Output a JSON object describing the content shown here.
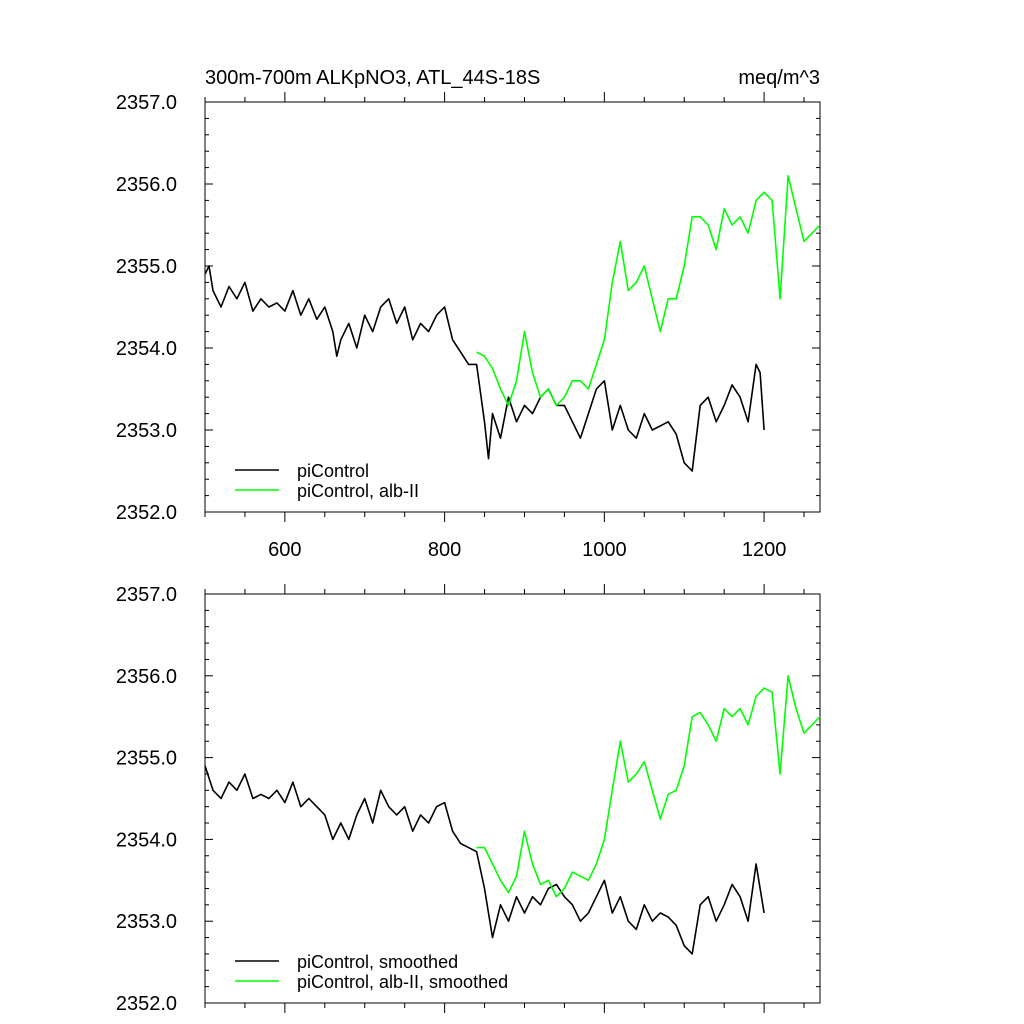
{
  "chart_data": [
    {
      "type": "line",
      "title": "300m-700m ALKpNO3, ATL_44S-18S",
      "units": "meq/m^3",
      "xlabel": "",
      "ylabel": "",
      "xlim": [
        500,
        1270
      ],
      "ylim": [
        2352.0,
        2357.0
      ],
      "x_ticks": [
        600,
        800,
        1000,
        1200
      ],
      "x_tick_labels": [
        "600",
        "800",
        "1000",
        "1200"
      ],
      "y_ticks": [
        2352.0,
        2353.0,
        2354.0,
        2355.0,
        2356.0,
        2357.0
      ],
      "y_tick_labels": [
        "2352.0",
        "2353.0",
        "2354.0",
        "2355.0",
        "2356.0",
        "2357.0"
      ],
      "grid": false,
      "legend_position": "bottom-left",
      "series": [
        {
          "name": "piControl",
          "color": "#000000",
          "x": [
            500,
            505,
            510,
            520,
            530,
            540,
            550,
            560,
            570,
            580,
            590,
            600,
            610,
            620,
            630,
            640,
            650,
            660,
            665,
            670,
            680,
            690,
            700,
            710,
            720,
            730,
            740,
            750,
            760,
            770,
            780,
            790,
            800,
            810,
            820,
            830,
            840,
            850,
            855,
            860,
            870,
            880,
            890,
            900,
            910,
            920,
            930,
            940,
            950,
            960,
            970,
            980,
            990,
            1000,
            1010,
            1020,
            1030,
            1040,
            1050,
            1060,
            1070,
            1080,
            1090,
            1100,
            1110,
            1120,
            1130,
            1140,
            1150,
            1160,
            1170,
            1180,
            1190,
            1195,
            1200
          ],
          "values": [
            2354.9,
            2355.0,
            2354.7,
            2354.5,
            2354.75,
            2354.6,
            2354.8,
            2354.45,
            2354.6,
            2354.5,
            2354.55,
            2354.45,
            2354.7,
            2354.4,
            2354.6,
            2354.35,
            2354.5,
            2354.2,
            2353.9,
            2354.1,
            2354.3,
            2354.0,
            2354.4,
            2354.2,
            2354.5,
            2354.6,
            2354.3,
            2354.5,
            2354.1,
            2354.3,
            2354.2,
            2354.4,
            2354.5,
            2354.1,
            2353.95,
            2353.8,
            2353.8,
            2353.1,
            2352.65,
            2353.2,
            2352.9,
            2353.4,
            2353.1,
            2353.3,
            2353.2,
            2353.4,
            2353.5,
            2353.3,
            2353.3,
            2353.1,
            2352.9,
            2353.2,
            2353.5,
            2353.6,
            2353.0,
            2353.3,
            2353.0,
            2352.9,
            2353.2,
            2353.0,
            2353.05,
            2353.1,
            2352.95,
            2352.6,
            2352.5,
            2353.3,
            2353.4,
            2353.1,
            2353.3,
            2353.55,
            2353.4,
            2353.1,
            2353.8,
            2353.7,
            2353.0
          ]
        },
        {
          "name": "piControl, alb-II",
          "color": "#00ff00",
          "x": [
            840,
            850,
            860,
            870,
            880,
            890,
            900,
            910,
            920,
            930,
            940,
            950,
            960,
            970,
            980,
            990,
            1000,
            1010,
            1020,
            1030,
            1040,
            1050,
            1060,
            1070,
            1080,
            1090,
            1100,
            1110,
            1120,
            1130,
            1140,
            1150,
            1160,
            1170,
            1180,
            1190,
            1200,
            1210,
            1220,
            1230,
            1240,
            1250,
            1260,
            1270
          ],
          "values": [
            2353.95,
            2353.9,
            2353.75,
            2353.5,
            2353.3,
            2353.6,
            2354.2,
            2353.7,
            2353.4,
            2353.5,
            2353.3,
            2353.4,
            2353.6,
            2353.6,
            2353.5,
            2353.8,
            2354.1,
            2354.8,
            2355.3,
            2354.7,
            2354.8,
            2355.0,
            2354.6,
            2354.2,
            2354.6,
            2354.6,
            2355.0,
            2355.6,
            2355.6,
            2355.5,
            2355.2,
            2355.7,
            2355.5,
            2355.6,
            2355.4,
            2355.8,
            2355.9,
            2355.8,
            2354.6,
            2356.1,
            2355.7,
            2355.3,
            2355.4,
            2355.5
          ]
        }
      ]
    },
    {
      "type": "line",
      "title": "",
      "xlabel": "",
      "ylabel": "",
      "xlim": [
        500,
        1270
      ],
      "ylim": [
        2352.0,
        2357.0
      ],
      "x_ticks": [
        600,
        800,
        1000,
        1200
      ],
      "x_tick_labels": [],
      "y_ticks": [
        2352.0,
        2353.0,
        2354.0,
        2355.0,
        2356.0,
        2357.0
      ],
      "y_tick_labels": [
        "2352.0",
        "2353.0",
        "2354.0",
        "2355.0",
        "2356.0",
        "2357.0"
      ],
      "grid": false,
      "legend_position": "bottom-left",
      "series": [
        {
          "name": "piControl, smoothed",
          "color": "#000000",
          "x": [
            500,
            510,
            520,
            530,
            540,
            550,
            560,
            570,
            580,
            590,
            600,
            610,
            620,
            630,
            640,
            650,
            660,
            670,
            680,
            690,
            700,
            710,
            720,
            730,
            740,
            750,
            760,
            770,
            780,
            790,
            800,
            810,
            820,
            830,
            840,
            850,
            860,
            870,
            880,
            890,
            900,
            910,
            920,
            930,
            940,
            950,
            960,
            970,
            980,
            990,
            1000,
            1010,
            1020,
            1030,
            1040,
            1050,
            1060,
            1070,
            1080,
            1090,
            1100,
            1110,
            1120,
            1130,
            1140,
            1150,
            1160,
            1170,
            1180,
            1190,
            1200
          ],
          "values": [
            2354.9,
            2354.6,
            2354.5,
            2354.7,
            2354.6,
            2354.8,
            2354.5,
            2354.55,
            2354.5,
            2354.6,
            2354.45,
            2354.7,
            2354.4,
            2354.5,
            2354.4,
            2354.3,
            2354.0,
            2354.2,
            2354.0,
            2354.3,
            2354.5,
            2354.2,
            2354.6,
            2354.4,
            2354.3,
            2354.4,
            2354.1,
            2354.3,
            2354.2,
            2354.4,
            2354.45,
            2354.1,
            2353.95,
            2353.9,
            2353.85,
            2353.4,
            2352.8,
            2353.2,
            2353.0,
            2353.3,
            2353.1,
            2353.3,
            2353.2,
            2353.4,
            2353.45,
            2353.3,
            2353.2,
            2353.0,
            2353.1,
            2353.3,
            2353.5,
            2353.1,
            2353.3,
            2353.0,
            2352.9,
            2353.2,
            2353.0,
            2353.1,
            2353.05,
            2352.95,
            2352.7,
            2352.6,
            2353.2,
            2353.3,
            2353.0,
            2353.2,
            2353.45,
            2353.3,
            2353.0,
            2353.7,
            2353.1
          ]
        },
        {
          "name": "piControl, alb-II, smoothed",
          "color": "#00ff00",
          "x": [
            840,
            850,
            860,
            870,
            880,
            890,
            900,
            910,
            920,
            930,
            940,
            950,
            960,
            970,
            980,
            990,
            1000,
            1010,
            1020,
            1030,
            1040,
            1050,
            1060,
            1070,
            1080,
            1090,
            1100,
            1110,
            1120,
            1130,
            1140,
            1150,
            1160,
            1170,
            1180,
            1190,
            1200,
            1210,
            1220,
            1230,
            1240,
            1250,
            1260,
            1270
          ],
          "values": [
            2353.9,
            2353.9,
            2353.7,
            2353.5,
            2353.35,
            2353.55,
            2354.1,
            2353.7,
            2353.45,
            2353.5,
            2353.3,
            2353.4,
            2353.6,
            2353.55,
            2353.5,
            2353.7,
            2354.0,
            2354.6,
            2355.2,
            2354.7,
            2354.8,
            2354.95,
            2354.6,
            2354.25,
            2354.55,
            2354.6,
            2354.9,
            2355.5,
            2355.55,
            2355.4,
            2355.2,
            2355.6,
            2355.5,
            2355.6,
            2355.4,
            2355.75,
            2355.85,
            2355.8,
            2354.8,
            2356.0,
            2355.6,
            2355.3,
            2355.4,
            2355.5
          ]
        }
      ]
    }
  ]
}
